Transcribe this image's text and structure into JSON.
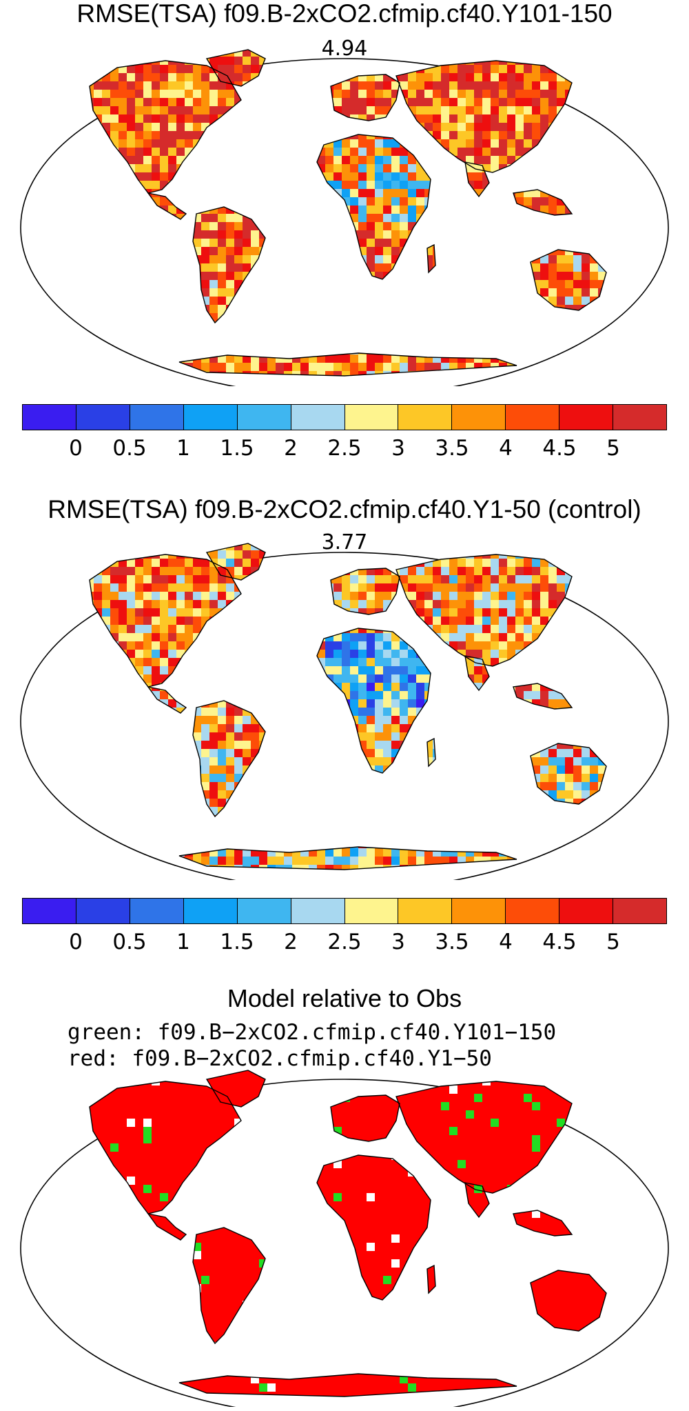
{
  "panels": [
    {
      "title": "RMSE(TSA) f09.B-2xCO2.cfmip.cf40.Y101-150",
      "value": "4.94"
    },
    {
      "title": "RMSE(TSA) f09.B-2xCO2.cfmip.cf40.Y1-50 (control)",
      "value": "3.77"
    }
  ],
  "colorbar": {
    "colors": [
      "#3a1df0",
      "#2a40e6",
      "#2f74e8",
      "#0fa1f5",
      "#3fb6f0",
      "#a8d8f0",
      "#fef48e",
      "#fdc726",
      "#fd9208",
      "#fd4d08",
      "#ee0f0f",
      "#d52b2b"
    ],
    "ticks": [
      "0",
      "0.5",
      "1",
      "1.5",
      "2",
      "2.5",
      "3",
      "3.5",
      "4",
      "4.5",
      "5"
    ]
  },
  "comparison": {
    "title": "Model relative to Obs",
    "green_label": "green: f09.B−2xCO2.cfmip.cf40.Y101−150",
    "red_label": "red: f09.B−2xCO2.cfmip.cf40.Y1−50",
    "colors": {
      "red": "#ff0000",
      "green": "#22dd22"
    }
  }
}
